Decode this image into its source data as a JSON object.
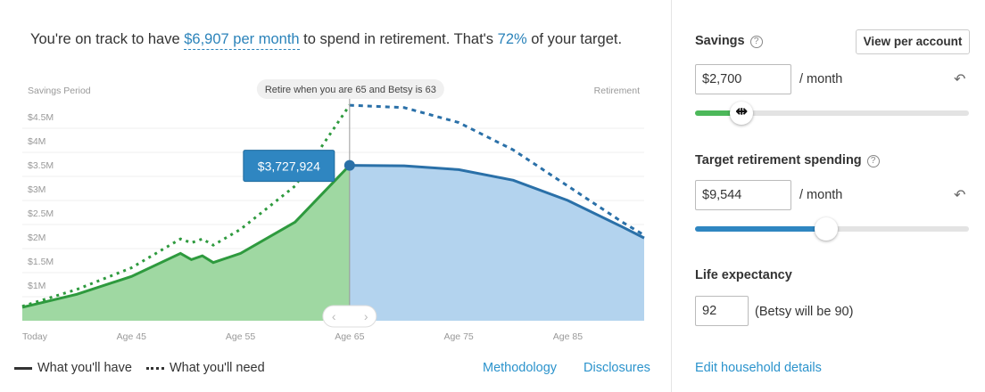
{
  "headline": {
    "pre": "You're on track to have ",
    "amount": "$6,907 per month",
    "mid": " to spend in retirement. That's ",
    "percent": "72%",
    "post": " of your target."
  },
  "chart_data": {
    "type": "area",
    "left_label": "Savings Period",
    "right_label": "Retirement",
    "retire_tooltip": "Retire when you are 65 and Betsy is 63",
    "value_tooltip": "$3,727,924",
    "retire_age": 65,
    "y_ticks": [
      {
        "v": 1,
        "label": "$1M"
      },
      {
        "v": 1.5,
        "label": "$1.5M"
      },
      {
        "v": 2,
        "label": "$2M"
      },
      {
        "v": 2.5,
        "label": "$2.5M"
      },
      {
        "v": 3,
        "label": "$3M"
      },
      {
        "v": 3.5,
        "label": "$3.5M"
      },
      {
        "v": 4,
        "label": "$4M"
      },
      {
        "v": 4.5,
        "label": "$4.5M"
      }
    ],
    "x_ticks": [
      {
        "age": 35,
        "label": "Today"
      },
      {
        "age": 45,
        "label": "Age 45"
      },
      {
        "age": 55,
        "label": "Age 55"
      },
      {
        "age": 65,
        "label": "Age 65"
      },
      {
        "age": 75,
        "label": "Age 75"
      },
      {
        "age": 85,
        "label": "Age 85"
      }
    ],
    "xlim": [
      35,
      92
    ],
    "y_unit": "$M",
    "series": [
      {
        "name": "What you'll have",
        "style": "solid",
        "points": [
          [
            35,
            0.78
          ],
          [
            40,
            1.05
          ],
          [
            45,
            1.42
          ],
          [
            49.5,
            1.9
          ],
          [
            50.5,
            1.77
          ],
          [
            51.5,
            1.85
          ],
          [
            52.5,
            1.71
          ],
          [
            55,
            1.9
          ],
          [
            60,
            2.55
          ],
          [
            65,
            3.73
          ],
          [
            70,
            3.72
          ],
          [
            75,
            3.64
          ],
          [
            80,
            3.42
          ],
          [
            85,
            3.0
          ],
          [
            90,
            2.45
          ],
          [
            92,
            2.22
          ]
        ]
      },
      {
        "name": "What you'll need",
        "style": "dotted",
        "points": [
          [
            35,
            0.8
          ],
          [
            40,
            1.15
          ],
          [
            45,
            1.6
          ],
          [
            49.5,
            2.2
          ],
          [
            50.5,
            2.12
          ],
          [
            51.5,
            2.2
          ],
          [
            52.5,
            2.07
          ],
          [
            55,
            2.4
          ],
          [
            60,
            3.3
          ],
          [
            65,
            4.98
          ],
          [
            70,
            4.93
          ],
          [
            75,
            4.62
          ],
          [
            80,
            4.05
          ],
          [
            85,
            3.3
          ],
          [
            90,
            2.55
          ],
          [
            92,
            2.28
          ]
        ]
      }
    ],
    "colors": {
      "savings": "#2e9a3e",
      "savings_fill": "#9fd8a2",
      "retire": "#2a70a8",
      "retire_fill": "#b3d3ee",
      "tooltip": "#2f86c1"
    }
  },
  "legend": {
    "have": "What you'll have",
    "need": "What you'll need"
  },
  "links": {
    "methodology": "Methodology",
    "disclosures": "Disclosures",
    "edit_household": "Edit household details"
  },
  "panel": {
    "savings": {
      "label": "Savings",
      "help": "?",
      "button": "View per account",
      "value": "$2,700",
      "unit": "/ month",
      "undo": "↶",
      "slider": 0.17,
      "cursor": "⇹"
    },
    "target": {
      "label": "Target retirement spending",
      "help": "?",
      "value": "$9,544",
      "unit": "/ month",
      "undo": "↶",
      "slider": 0.48
    },
    "life": {
      "label": "Life expectancy",
      "value": "92",
      "note": "(Betsy will be 90)"
    }
  }
}
